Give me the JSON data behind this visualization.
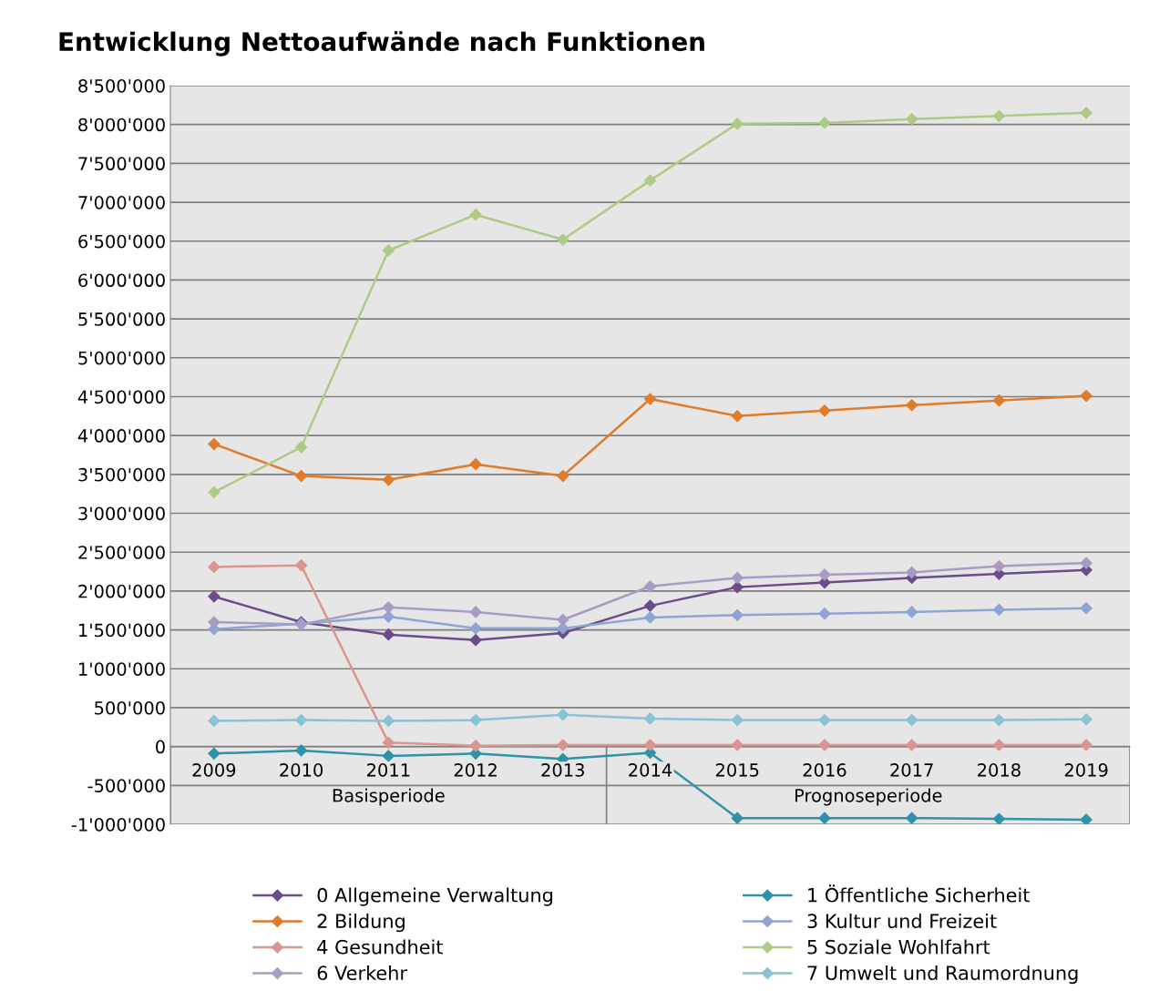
{
  "chart_data": {
    "type": "line",
    "title": "Entwicklung Nettoaufwände nach Funktionen",
    "categories": [
      "2009",
      "2010",
      "2011",
      "2012",
      "2013",
      "2014",
      "2015",
      "2016",
      "2017",
      "2018",
      "2019"
    ],
    "series": [
      {
        "name": "0 Allgemeine Verwaltung",
        "color": "#6b4c8a",
        "values": [
          1930000,
          1600000,
          1440000,
          1370000,
          1460000,
          1810000,
          2050000,
          2110000,
          2170000,
          2220000,
          2270000
        ]
      },
      {
        "name": "1 Öffentliche Sicherheit",
        "color": "#2e93a8",
        "values": [
          -90000,
          -50000,
          -120000,
          -90000,
          -160000,
          -80000,
          -920000,
          -920000,
          -920000,
          -930000,
          -940000
        ]
      },
      {
        "name": "2 Bildung",
        "color": "#e07b2a",
        "values": [
          3890000,
          3480000,
          3430000,
          3630000,
          3480000,
          4470000,
          4250000,
          4320000,
          4390000,
          4450000,
          4510000
        ]
      },
      {
        "name": "3 Kultur und Freizeit",
        "color": "#8ea4d2",
        "values": [
          1510000,
          1580000,
          1670000,
          1520000,
          1520000,
          1660000,
          1690000,
          1710000,
          1730000,
          1760000,
          1780000
        ]
      },
      {
        "name": "4 Gesundheit",
        "color": "#d99590",
        "values": [
          2310000,
          2330000,
          50000,
          10000,
          20000,
          20000,
          20000,
          20000,
          20000,
          20000,
          20000
        ]
      },
      {
        "name": "5 Soziale Wohlfahrt",
        "color": "#aecb86",
        "values": [
          3270000,
          3850000,
          6380000,
          6840000,
          6520000,
          7280000,
          8010000,
          8020000,
          8070000,
          8110000,
          8150000
        ]
      },
      {
        "name": "6 Verkehr",
        "color": "#a99bc4",
        "values": [
          1600000,
          1570000,
          1790000,
          1730000,
          1630000,
          2060000,
          2170000,
          2210000,
          2240000,
          2320000,
          2360000
        ]
      },
      {
        "name": "7 Umwelt und Raumordnung",
        "color": "#88c3d6",
        "values": [
          330000,
          340000,
          330000,
          340000,
          410000,
          360000,
          340000,
          340000,
          340000,
          340000,
          350000
        ]
      }
    ],
    "ylim": [
      -1000000,
      8500000
    ],
    "yticks": [
      {
        "value": -1000000,
        "label": "-1'000'000"
      },
      {
        "value": -500000,
        "label": "-500'000"
      },
      0,
      {
        "value": 500000,
        "label": "500'000"
      },
      {
        "value": 1000000,
        "label": "1'000'000"
      },
      {
        "value": 1500000,
        "label": "1'500'000"
      },
      {
        "value": 2000000,
        "label": "2'000'000"
      },
      {
        "value": 2500000,
        "label": "2'500'000"
      },
      {
        "value": 3000000,
        "label": "3'000'000"
      },
      {
        "value": 3500000,
        "label": "3'500'000"
      },
      {
        "value": 4000000,
        "label": "4'000'000"
      },
      {
        "value": 4500000,
        "label": "4'500'000"
      },
      {
        "value": 5000000,
        "label": "5'000'000"
      },
      {
        "value": 5500000,
        "label": "5'500'000"
      },
      {
        "value": 6000000,
        "label": "6'000'000"
      },
      {
        "value": 6500000,
        "label": "6'500'000"
      },
      {
        "value": 7000000,
        "label": "7'000'000"
      },
      {
        "value": 7500000,
        "label": "7'500'000"
      },
      {
        "value": 8000000,
        "label": "8'000'000"
      },
      {
        "value": 8500000,
        "label": "8'500'000"
      }
    ],
    "annotations": [
      "Basisperiode",
      "Prognoseperiode"
    ],
    "grid": "y",
    "legend": "bottom",
    "marker": "diamond",
    "line_style": "solid"
  }
}
